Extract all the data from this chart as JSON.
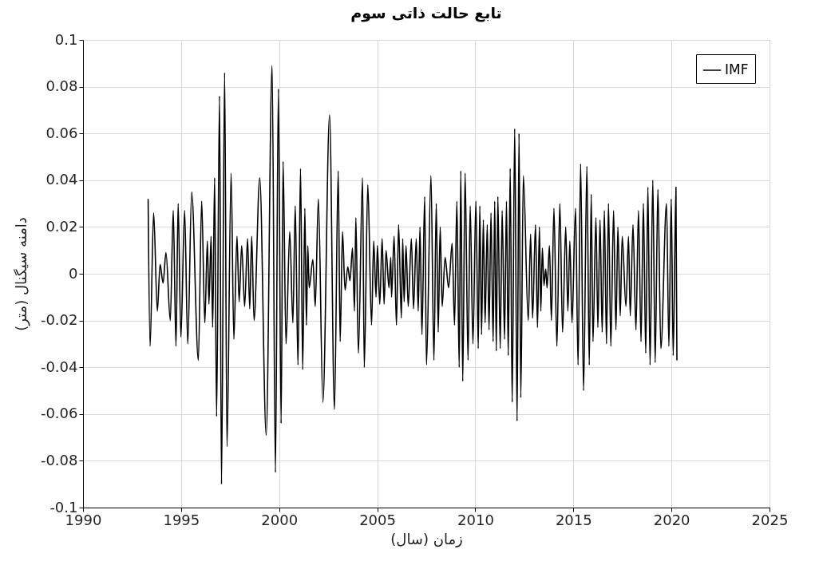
{
  "chart_data": {
    "type": "line",
    "title": "تابع حالت ذاتی سوم",
    "xlabel": "زمان (سال)",
    "ylabel": "دامنه سیگنال (متر)",
    "xlim": [
      1990,
      2025
    ],
    "xticks": [
      1990,
      1995,
      2000,
      2005,
      2010,
      2015,
      2020,
      2025
    ],
    "ylim": [
      -0.1,
      0.1
    ],
    "yticks": [
      -0.1,
      -0.08,
      -0.06,
      -0.04,
      -0.02,
      0,
      0.02,
      0.04,
      0.06,
      0.08,
      0.1
    ],
    "grid": true,
    "legend": "top right",
    "line_style": "solid",
    "x": [
      1993.32,
      1993.42,
      1993.6,
      1993.79,
      1993.93,
      1994.08,
      1994.23,
      1994.45,
      1994.6,
      1994.74,
      1994.85,
      1994.99,
      1995.18,
      1995.34,
      1995.54,
      1995.88,
      1996.05,
      1996.21,
      1996.34,
      1996.42,
      1996.53,
      1996.61,
      1996.71,
      1996.81,
      1996.96,
      1997.06,
      1997.22,
      1997.34,
      1997.55,
      1997.69,
      1997.85,
      1997.96,
      1998.09,
      1998.24,
      1998.39,
      1998.5,
      1998.6,
      1998.72,
      1999.01,
      1999.34,
      1999.64,
      1999.81,
      1999.96,
      2000.1,
      2000.2,
      2000.35,
      2000.54,
      2000.7,
      2000.82,
      2000.96,
      2001.09,
      2001.2,
      2001.31,
      2001.39,
      2001.46,
      2001.53,
      2001.72,
      2001.84,
      2002.0,
      2002.23,
      2002.57,
      2002.82,
      2003.01,
      2003.11,
      2003.23,
      2003.36,
      2003.5,
      2003.61,
      2003.74,
      2003.84,
      2003.91,
      2004.04,
      2004.25,
      2004.34,
      2004.52,
      2004.71,
      2004.82,
      2004.94,
      2005.01,
      2005.13,
      2005.25,
      2005.35,
      2005.45,
      2005.6,
      2005.69,
      2005.73,
      2005.86,
      2005.98,
      2006.09,
      2006.23,
      2006.3,
      2006.37,
      2006.47,
      2006.58,
      2006.74,
      2006.85,
      2006.99,
      2007.09,
      2007.18,
      2007.28,
      2007.42,
      2007.51,
      2007.74,
      2007.89,
      2008.01,
      2008.11,
      2008.21,
      2008.31,
      2008.46,
      2008.64,
      2008.82,
      2008.94,
      2009.06,
      2009.18,
      2009.26,
      2009.36,
      2009.48,
      2009.63,
      2009.74,
      2009.88,
      2010.03,
      2010.15,
      2010.23,
      2010.32,
      2010.41,
      2010.5,
      2010.61,
      2010.7,
      2010.8,
      2010.91,
      2010.99,
      2011.07,
      2011.15,
      2011.27,
      2011.37,
      2011.49,
      2011.59,
      2011.68,
      2011.78,
      2011.88,
      2012.01,
      2012.13,
      2012.23,
      2012.32,
      2012.45,
      2012.7,
      2012.82,
      2012.92,
      2013.07,
      2013.17,
      2013.27,
      2013.34,
      2013.42,
      2013.5,
      2013.59,
      2013.66,
      2013.78,
      2013.88,
      2014.01,
      2014.16,
      2014.31,
      2014.45,
      2014.61,
      2014.72,
      2014.82,
      2014.93,
      2015.11,
      2015.24,
      2015.37,
      2015.52,
      2015.69,
      2015.81,
      2015.91,
      2016.0,
      2016.15,
      2016.25,
      2016.36,
      2016.47,
      2016.58,
      2016.69,
      2016.79,
      2016.91,
      2017.05,
      2017.17,
      2017.27,
      2017.39,
      2017.49,
      2017.68,
      2017.81,
      2017.9,
      2018.04,
      2018.19,
      2018.32,
      2018.45,
      2018.57,
      2018.69,
      2018.8,
      2018.91,
      2019.05,
      2019.17,
      2019.31,
      2019.46,
      2019.75,
      2019.87,
      2019.99,
      2020.09,
      2020.23,
      2020.28
    ],
    "series": [
      {
        "name": "IMF",
        "color": "#000000",
        "values": [
          0.032,
          -0.031,
          0.026,
          -0.016,
          0.004,
          -0.004,
          0.009,
          -0.02,
          0.027,
          -0.031,
          0.03,
          -0.027,
          0.027,
          -0.03,
          0.035,
          -0.037,
          0.031,
          -0.021,
          0.014,
          -0.013,
          0.016,
          -0.023,
          0.041,
          -0.061,
          0.076,
          -0.09,
          0.086,
          -0.074,
          0.043,
          -0.028,
          0.016,
          -0.012,
          0.012,
          -0.014,
          0.015,
          -0.015,
          0.016,
          -0.02,
          0.041,
          -0.069,
          0.089,
          -0.085,
          0.079,
          -0.064,
          0.048,
          -0.03,
          0.018,
          -0.021,
          0.029,
          -0.039,
          0.045,
          -0.041,
          0.028,
          -0.022,
          0.012,
          -0.006,
          0.006,
          -0.014,
          0.032,
          -0.055,
          0.068,
          -0.058,
          0.044,
          -0.029,
          0.018,
          -0.007,
          0.003,
          -0.003,
          0.011,
          -0.016,
          0.024,
          -0.034,
          0.041,
          -0.04,
          0.038,
          -0.022,
          0.014,
          -0.01,
          0.012,
          -0.013,
          0.015,
          -0.013,
          0.01,
          -0.006,
          0.007,
          -0.01,
          0.016,
          -0.022,
          0.021,
          -0.019,
          0.015,
          -0.012,
          0.012,
          -0.014,
          0.015,
          -0.015,
          0.015,
          -0.016,
          0.02,
          -0.026,
          0.033,
          -0.039,
          0.042,
          -0.037,
          0.03,
          -0.025,
          0.02,
          -0.014,
          0.007,
          -0.006,
          0.013,
          -0.022,
          0.031,
          -0.04,
          0.044,
          -0.046,
          0.043,
          -0.037,
          0.029,
          -0.03,
          0.031,
          -0.032,
          0.029,
          -0.026,
          0.023,
          -0.021,
          0.021,
          -0.024,
          0.026,
          -0.029,
          0.031,
          -0.033,
          0.033,
          -0.032,
          0.027,
          -0.028,
          0.031,
          -0.035,
          0.045,
          -0.055,
          0.062,
          -0.063,
          0.06,
          -0.053,
          0.042,
          -0.02,
          0.017,
          -0.019,
          0.021,
          -0.023,
          0.02,
          -0.016,
          0.011,
          -0.005,
          0.002,
          -0.006,
          0.012,
          -0.02,
          0.028,
          -0.031,
          0.03,
          -0.025,
          0.02,
          -0.016,
          0.014,
          -0.021,
          0.028,
          -0.039,
          0.047,
          -0.05,
          0.046,
          -0.039,
          0.034,
          -0.029,
          0.024,
          -0.023,
          0.023,
          -0.025,
          0.027,
          -0.03,
          0.03,
          -0.031,
          0.027,
          -0.024,
          0.02,
          -0.018,
          0.016,
          -0.014,
          0.016,
          -0.018,
          0.021,
          -0.024,
          0.027,
          -0.029,
          0.03,
          -0.034,
          0.037,
          -0.039,
          0.04,
          -0.038,
          0.036,
          -0.032,
          0.03,
          -0.031,
          0.032,
          -0.035,
          0.037,
          -0.037
        ]
      }
    ]
  }
}
